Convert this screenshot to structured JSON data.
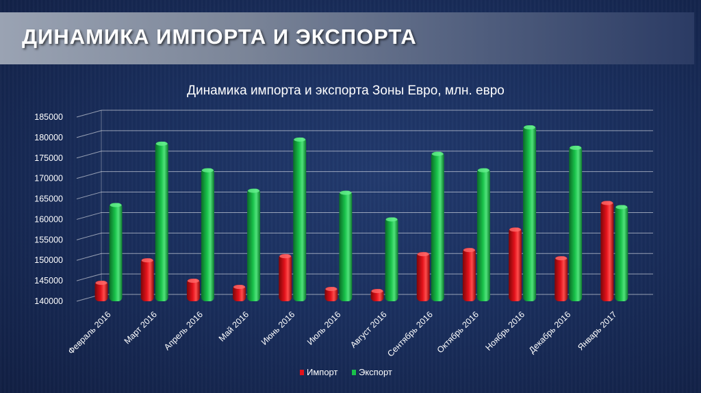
{
  "slide": {
    "title": "ДИНАМИКА ИМПОРТА И ЭКСПОРТА"
  },
  "chart_data": {
    "type": "bar",
    "title": "Динамика импорта и экспорта Зоны Евро, млн. евро",
    "categories": [
      "Февраль 2016",
      "Март 2016",
      "Апрель 2016",
      "Май 2016",
      "Июнь 2016",
      "Июль 2016",
      "Август 2016",
      "Сентябрь 2016",
      "Октябрь 2016",
      "Ноябрь 2016",
      "Декабрь 2016",
      "Январь 2017"
    ],
    "series": [
      {
        "name": "Импорт",
        "color": "#e3121b",
        "values": [
          145000,
          150500,
          145500,
          144000,
          151500,
          143500,
          143000,
          152000,
          153000,
          158000,
          151000,
          164500
        ]
      },
      {
        "name": "Экспорт",
        "color": "#19c24a",
        "values": [
          164000,
          179000,
          172500,
          167500,
          180000,
          167000,
          160500,
          176500,
          172500,
          183000,
          178000,
          163500
        ]
      }
    ],
    "ylim": [
      140000,
      185000
    ],
    "yticks": [
      "140000",
      "145000",
      "150000",
      "155000",
      "160000",
      "165000",
      "170000",
      "175000",
      "180000",
      "185000"
    ],
    "grid": true,
    "legend_position": "bottom",
    "legend": [
      "Импорт",
      "Экспорт"
    ]
  }
}
